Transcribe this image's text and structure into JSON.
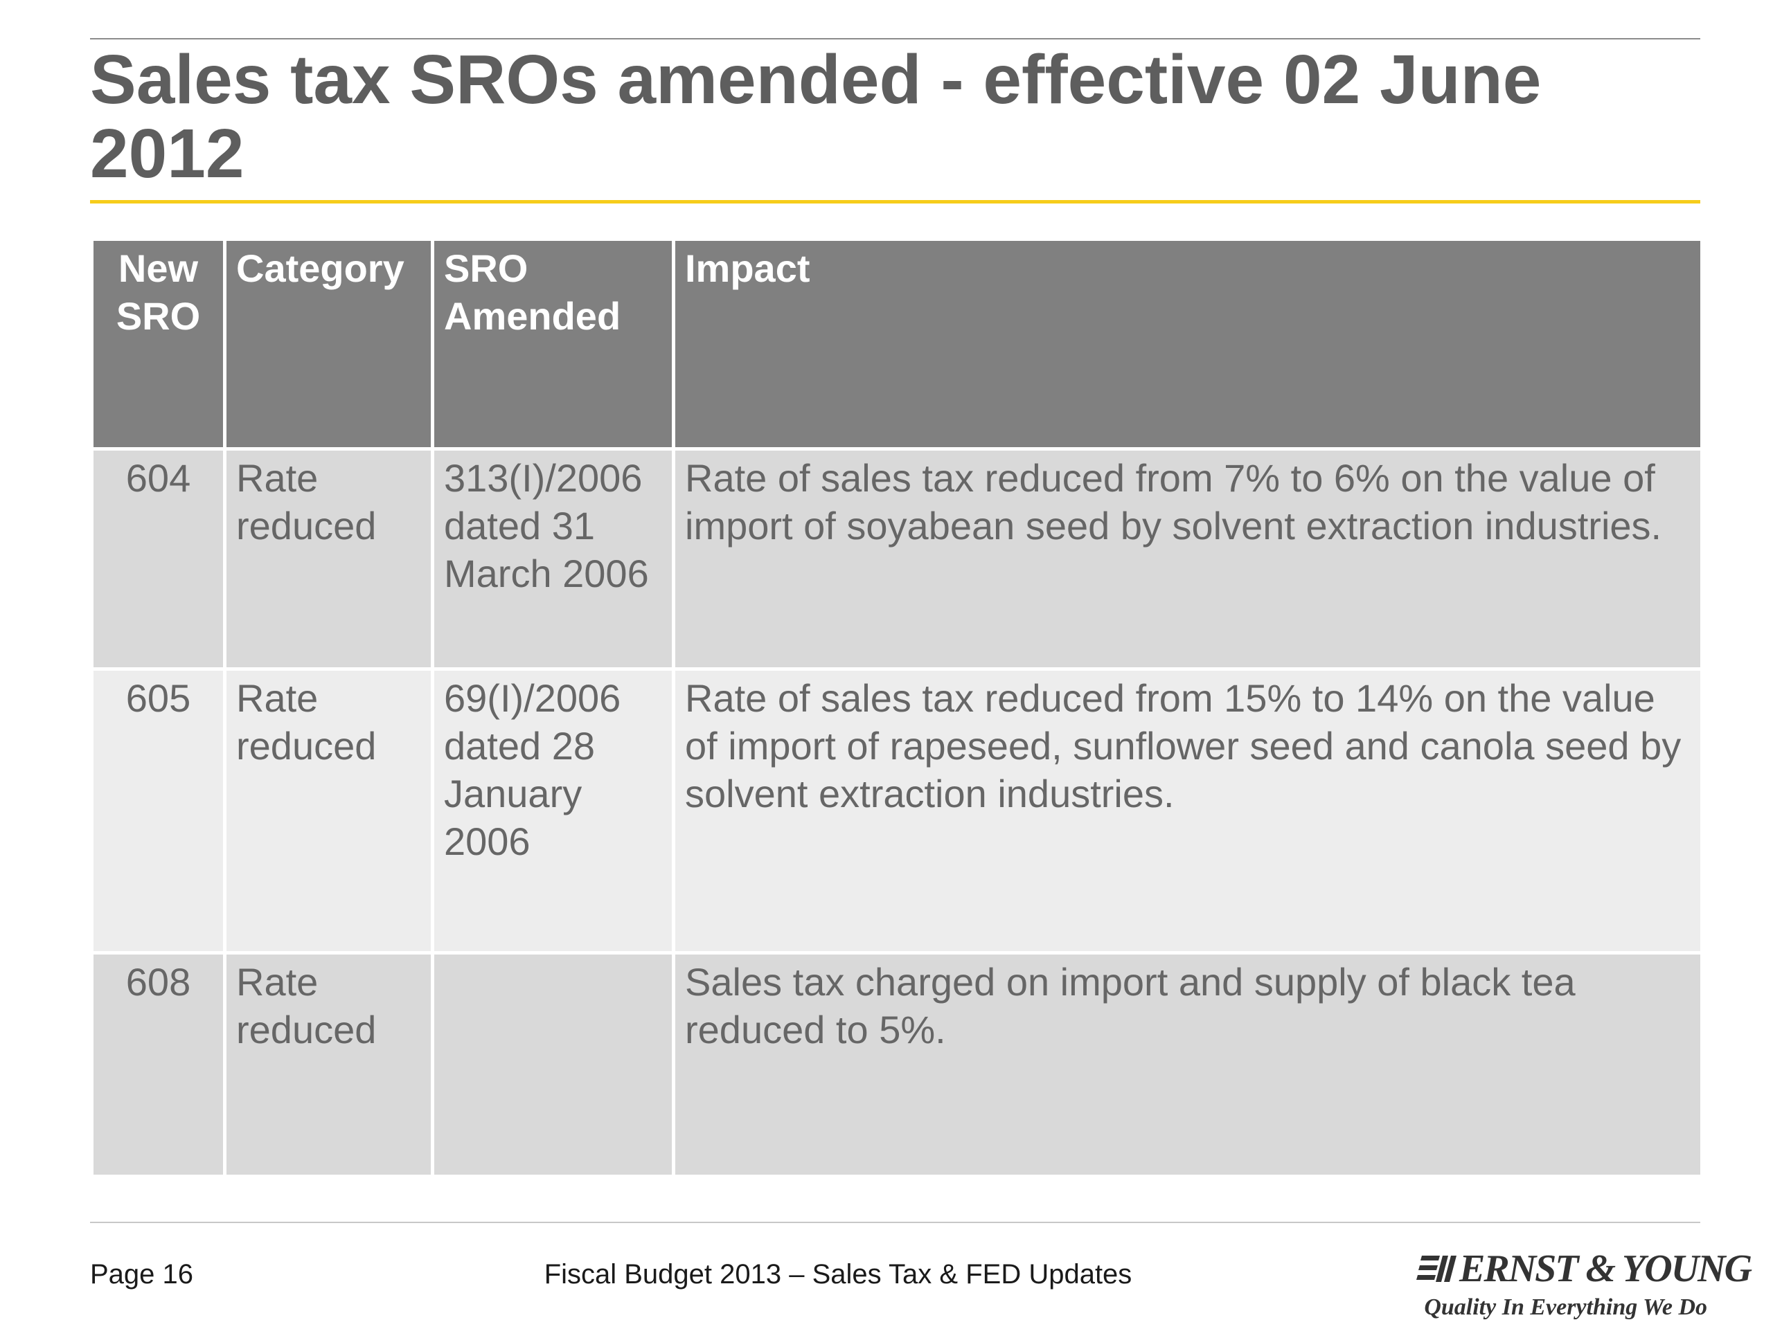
{
  "slide": {
    "title": "Sales tax SROs amended - effective 02 June 2012"
  },
  "table": {
    "headers": {
      "new_sro": "New SRO",
      "category": "Category",
      "sro_amended": "SRO Amended",
      "impact": "Impact"
    },
    "rows": [
      {
        "new_sro": "604",
        "category": "Rate reduced",
        "sro_amended": "313(I)/2006 dated 31 March 2006",
        "impact": "Rate of sales tax reduced from 7% to 6% on the value of import of soyabean seed by solvent extraction industries."
      },
      {
        "new_sro": "605",
        "category": "Rate reduced",
        "sro_amended": "69(I)/2006 dated 28 January 2006",
        "impact": "Rate of sales tax reduced from 15% to 14% on the value of import of rapeseed, sunflower seed and canola seed by solvent extraction industries."
      },
      {
        "new_sro": "608",
        "category": "Rate reduced",
        "sro_amended": "",
        "impact": "Sales tax charged on import and supply of black tea reduced to 5%."
      }
    ]
  },
  "footer": {
    "page": "Page 16",
    "center_text": "Fiscal Budget 2013 – Sales Tax & FED Updates",
    "logo": {
      "name": "ERNST & YOUNG",
      "tagline": "Quality In Everything We Do",
      "icon": "ey-logo-icon"
    }
  },
  "colors": {
    "title": "#5e5e5e",
    "accent_rule": "#f6cd1b",
    "header_bg": "#808080",
    "row_dark": "#d9d9d9",
    "row_light": "#ededed",
    "body_text": "#666666"
  }
}
